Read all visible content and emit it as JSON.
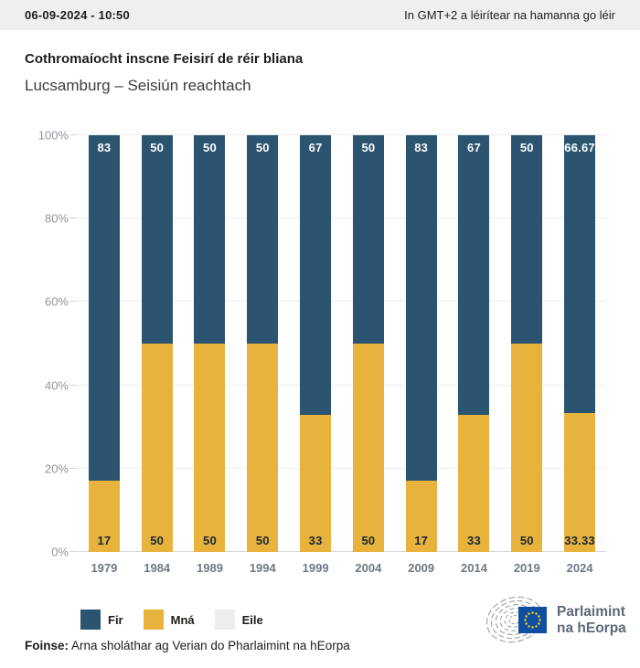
{
  "header": {
    "timestamp": "06-09-2024 - 10:50",
    "timezone_note": "In GMT+2 a léirítear na hamanna go léir"
  },
  "title": "Cothromaíocht inscne Feisirí de réir bliana",
  "subtitle": "Lucsamburg – Seisiún reachtach",
  "chart_data": {
    "type": "bar",
    "stacked": true,
    "title": "Cothromaíocht inscne Feisirí de réir bliana",
    "subtitle": "Lucsamburg – Seisiún reachtach",
    "categories": [
      "1979",
      "1984",
      "1989",
      "1994",
      "1999",
      "2004",
      "2009",
      "2014",
      "2019",
      "2024"
    ],
    "series": [
      {
        "name": "Fir",
        "color": "#2a5470",
        "values": [
          83,
          50,
          50,
          50,
          67,
          50,
          83,
          67,
          50,
          66.67
        ],
        "labels": [
          "83",
          "50",
          "50",
          "50",
          "67",
          "50",
          "83",
          "67",
          "50",
          "66.67"
        ]
      },
      {
        "name": "Mná",
        "color": "#e8b33c",
        "values": [
          17,
          50,
          50,
          50,
          33,
          50,
          17,
          33,
          50,
          33.33
        ],
        "labels": [
          "17",
          "50",
          "50",
          "50",
          "33",
          "50",
          "17",
          "33",
          "50",
          "33.33"
        ]
      },
      {
        "name": "Eile",
        "color": "#ededed",
        "values": [
          0,
          0,
          0,
          0,
          0,
          0,
          0,
          0,
          0,
          0
        ],
        "labels": []
      }
    ],
    "xlabel": "",
    "ylabel": "",
    "ylim": [
      0,
      100
    ],
    "y_ticks": [
      "0%",
      "20%",
      "40%",
      "60%",
      "80%",
      "100%"
    ],
    "grid": true,
    "legend_position": "bottom-left",
    "value_label_positions": {
      "Fir": "inside-top-white",
      "Mná": "inside-bottom-dark"
    }
  },
  "legend": {
    "items": [
      {
        "label": "Fir",
        "color": "#2a5470"
      },
      {
        "label": "Mná",
        "color": "#e8b33c"
      },
      {
        "label": "Eile",
        "color": "#ededed"
      }
    ]
  },
  "footer": {
    "source_label": "Foinse:",
    "source_text": " Arna sholáthar ag Verian do Pharlaimint na hEorpa"
  },
  "logo": {
    "line1": "Parlaimint",
    "line2": "na hEorpa",
    "flag_blue": "#0f4ea0",
    "star_yellow": "#ffd617"
  }
}
